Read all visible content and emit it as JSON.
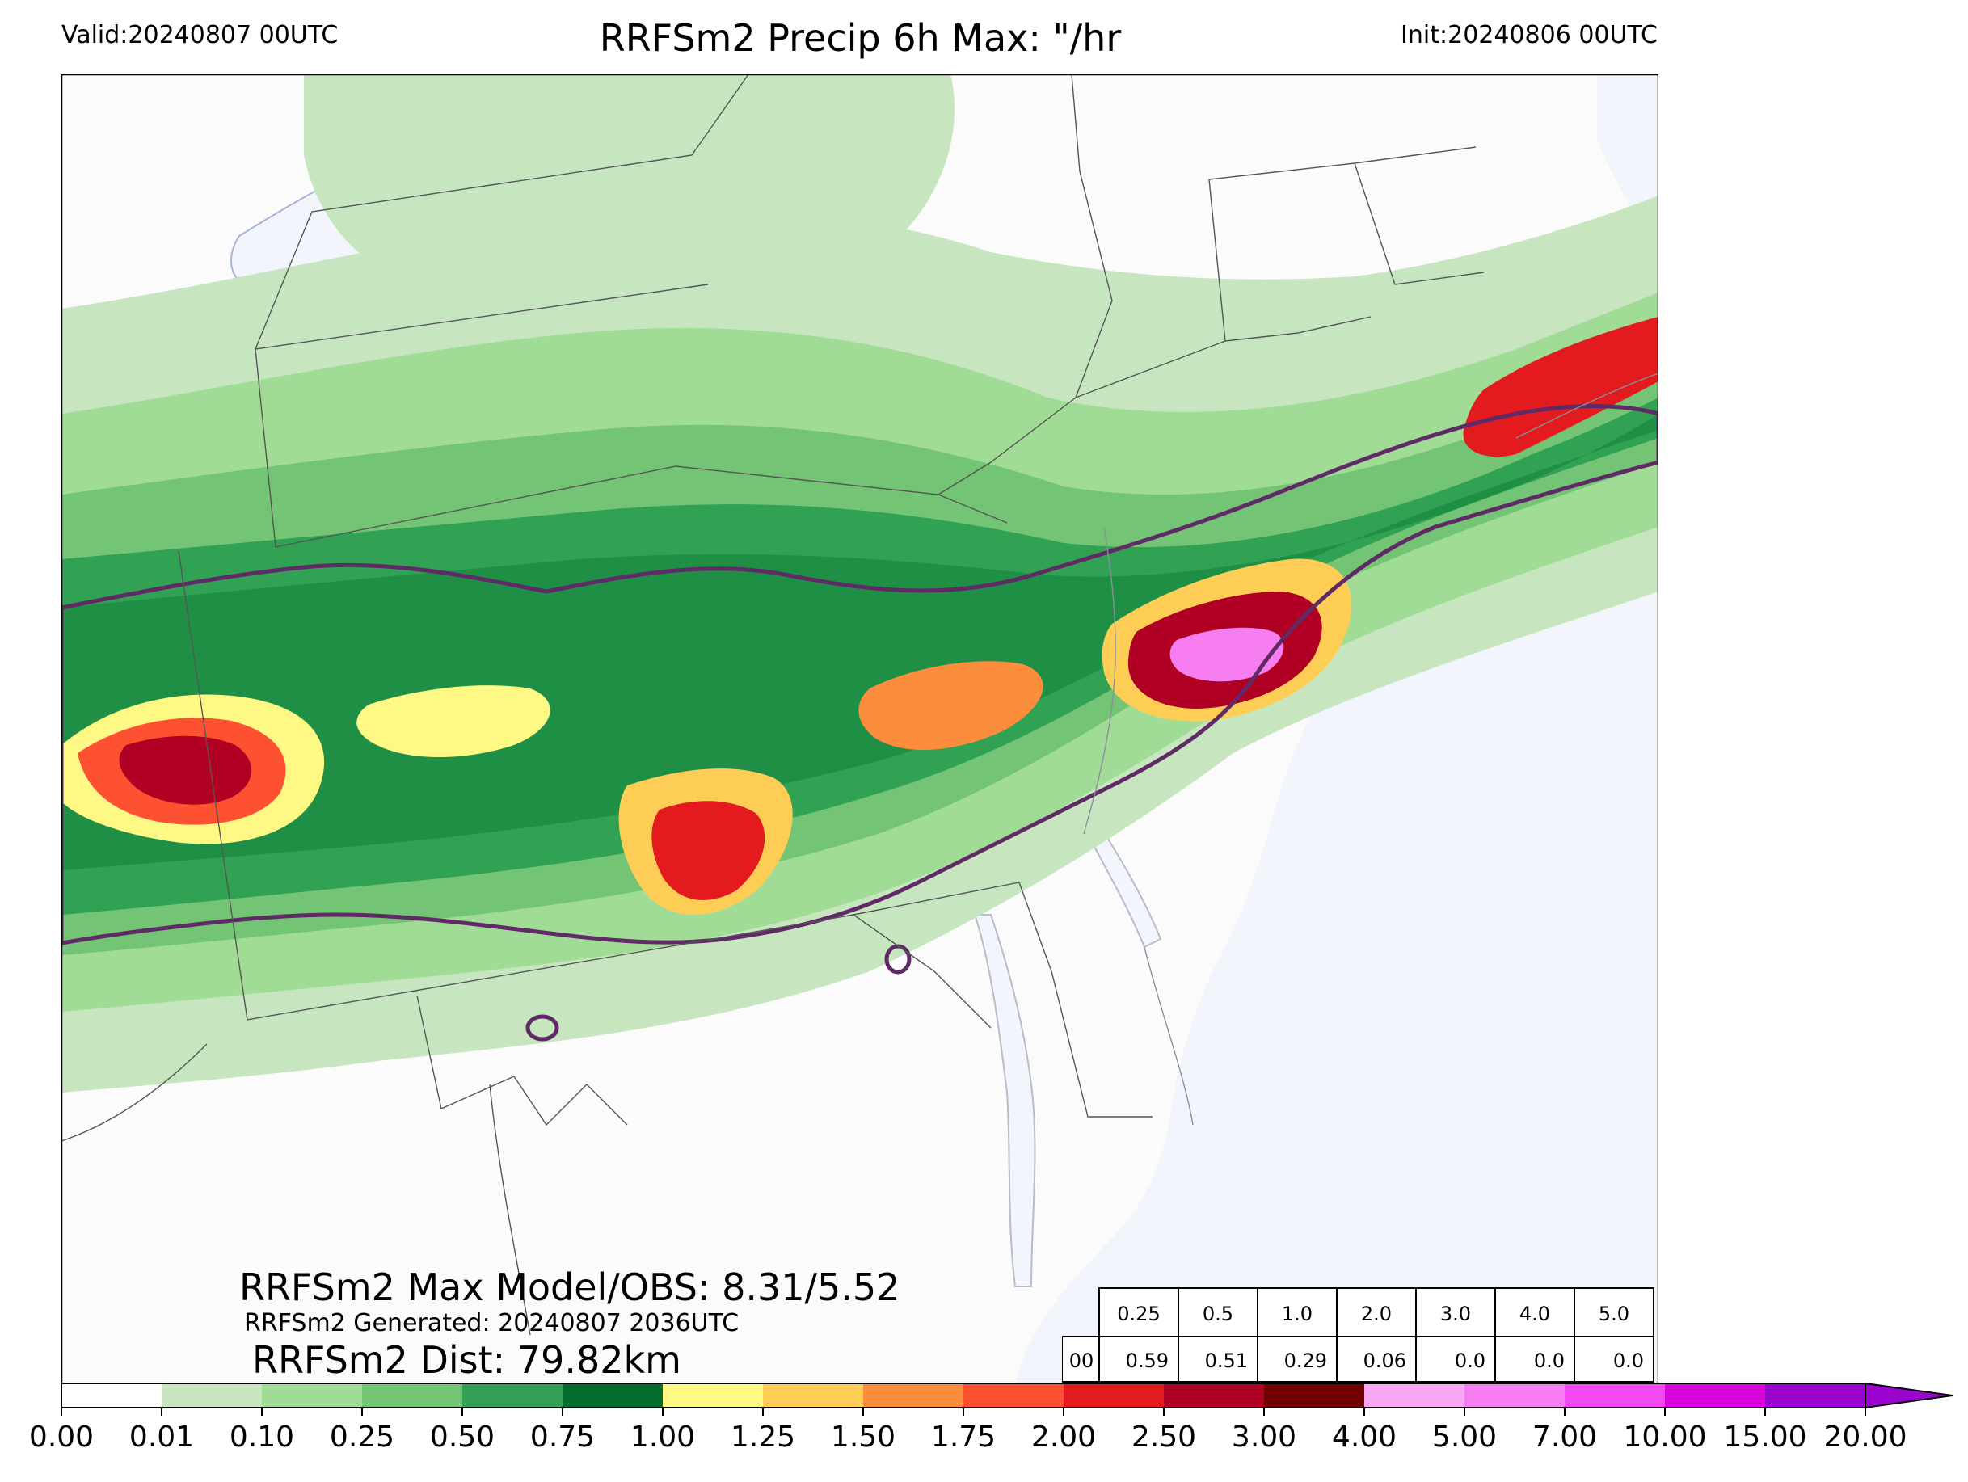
{
  "header": {
    "valid": "Valid:20240807 00UTC",
    "title": "RRFSm2 Precip 6h Max: \"/hr",
    "init": "Init:20240806 00UTC"
  },
  "annotations": {
    "max_line": "RRFSm2 Max Model/OBS: 8.31/5.52",
    "generated_line": "RRFSm2 Generated: 20240807 2036UTC",
    "dist_line": "RRFSm2 Dist: 79.82km"
  },
  "stats_table": {
    "thresholds": [
      "0.25",
      "0.5",
      "1.0",
      "2.0",
      "3.0",
      "4.0",
      "5.0"
    ],
    "row_label": "00",
    "values": [
      "0.59",
      "0.51",
      "0.29",
      "0.06",
      "0.0",
      "0.0",
      "0.0"
    ]
  },
  "colorbar": {
    "ticks": [
      "0.00",
      "0.01",
      "0.10",
      "0.25",
      "0.50",
      "0.75",
      "1.00",
      "1.25",
      "1.50",
      "1.75",
      "2.00",
      "2.50",
      "3.00",
      "4.00",
      "5.00",
      "7.00",
      "10.00",
      "15.00",
      "20.00"
    ],
    "colors": [
      "#ffffff",
      "#c7e6c0",
      "#a1dc97",
      "#73c475",
      "#31a154",
      "#006d2c",
      "#fef885",
      "#fecd56",
      "#fc8d3c",
      "#fd5131",
      "#e31b1e",
      "#b00124",
      "#710001",
      "#f9a7f4",
      "#f67ef0",
      "#f24af2",
      "#d904db",
      "#9b03cf"
    ],
    "extend_color": "#9b03cf"
  },
  "map_colors": {
    "land": "#fbfbfb",
    "water": "#f2f5fb",
    "observed_contour": "#5f2a66",
    "borders": "#555555"
  }
}
